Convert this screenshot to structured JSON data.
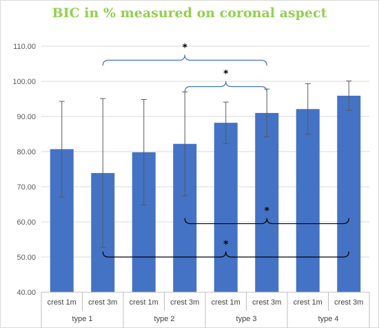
{
  "chart_data": {
    "type": "bar",
    "title": "BIC in % measured on coronal aspect",
    "categories": [
      "crest 1m",
      "crest 3m",
      "crest 1m",
      "crest 3m",
      "crest 1m",
      "crest 3m",
      "crest 1m",
      "crest 3m"
    ],
    "groups": [
      {
        "label": "type 1",
        "categories": [
          "crest 1m",
          "crest 3m"
        ]
      },
      {
        "label": "type 2",
        "categories": [
          "crest 1m",
          "crest 3m"
        ]
      },
      {
        "label": "type 3",
        "categories": [
          "crest 1m",
          "crest 3m"
        ]
      },
      {
        "label": "type 4",
        "categories": [
          "crest 1m",
          "crest 3m"
        ]
      }
    ],
    "values": [
      80.7,
      73.9,
      79.8,
      82.2,
      88.2,
      91.0,
      92.1,
      95.9
    ],
    "error_plus": [
      13.6,
      21.2,
      15.0,
      14.8,
      5.9,
      6.8,
      7.2,
      4.2
    ],
    "error_minus": [
      13.6,
      21.2,
      15.0,
      14.8,
      5.9,
      6.8,
      7.2,
      4.2
    ],
    "ylim": [
      40,
      110
    ],
    "yticks": [
      "40.00",
      "50.00",
      "60.00",
      "70.00",
      "80.00",
      "90.00",
      "100.00",
      "110.00"
    ],
    "grid": true,
    "bar_color": "#4472c4",
    "gridline_color": "#d9d9d9",
    "significance": [
      {
        "from": 1,
        "to": 5,
        "label": "*",
        "side": "top",
        "color": "#4472c4",
        "y": 106
      },
      {
        "from": 3,
        "to": 5,
        "label": "*",
        "side": "top",
        "color": "#4472c4",
        "y": 98.5
      },
      {
        "from": 3,
        "to": 7,
        "label": "*",
        "side": "bottom",
        "color": "#000000",
        "y": 59.5
      },
      {
        "from": 1,
        "to": 7,
        "label": "*",
        "side": "bottom",
        "color": "#000000",
        "y": 50
      }
    ]
  }
}
